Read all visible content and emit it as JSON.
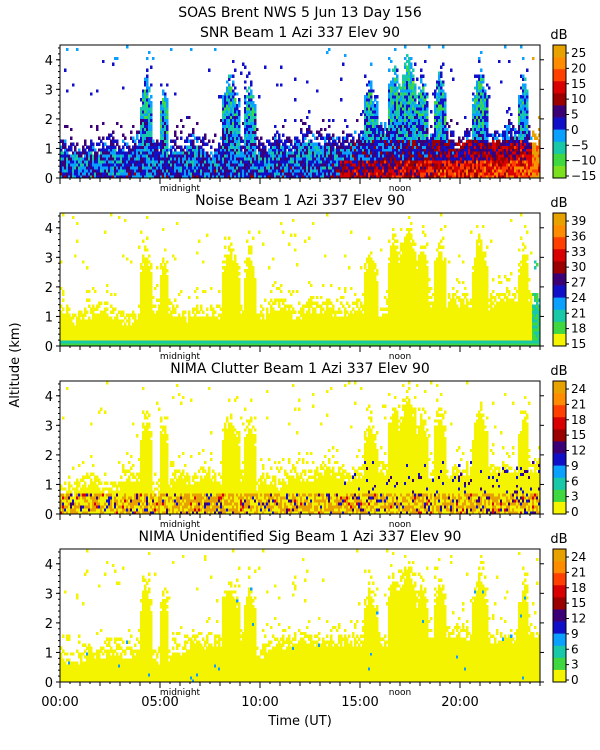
{
  "header": {
    "title": "SOAS Brent NWS    5 Jun 13 Day 156"
  },
  "chart_data": {
    "type": "heatmap",
    "ylabel": "Altitude (km)",
    "xlabel": "Time (UT)",
    "xlim": [
      0,
      24
    ],
    "ylim": [
      0,
      4.5
    ],
    "x_tick_labels": [
      "00:00",
      "05:00",
      "10:00",
      "15:00",
      "20:00"
    ],
    "x_tick_hours": [
      0,
      5,
      10,
      15,
      20
    ],
    "y_ticks": [
      0,
      1,
      2,
      3,
      4
    ],
    "time_markers": [
      {
        "label": "midnight",
        "hour": 6
      },
      {
        "label": "noon",
        "hour": 17
      }
    ],
    "panels": [
      {
        "title": "SNR Beam 1 Azi 337 Elev 90",
        "unit": "dB",
        "colorbar_ticks": [
          "25",
          "20",
          "15",
          "10",
          "5",
          "0",
          "−5",
          "−10",
          "−15"
        ],
        "colors": [
          "#e8a200",
          "#ff8c00",
          "#ff4000",
          "#d80000",
          "#9b0000",
          "#3c0076",
          "#1010c8",
          "#0aa0ff",
          "#18c8a8",
          "#40d840",
          "#7be020"
        ]
      },
      {
        "title": "Noise Beam 1 Azi 337 Elev 90",
        "unit": "dB",
        "colorbar_ticks": [
          "39",
          "36",
          "33",
          "30",
          "27",
          "24",
          "21",
          "18",
          "15"
        ],
        "colors": [
          "#e8a200",
          "#ff8c00",
          "#ff4000",
          "#d80000",
          "#9b0000",
          "#3c0076",
          "#1010c8",
          "#0aa0ff",
          "#18c8a8",
          "#40d840",
          "#f4f400"
        ]
      },
      {
        "title": "NIMA Clutter Beam 1 Azi 337 Elev 90",
        "unit": "dB",
        "colorbar_ticks": [
          "24",
          "21",
          "18",
          "15",
          "12",
          "9",
          "6",
          "3",
          "0"
        ],
        "colors": [
          "#e8a200",
          "#ff8c00",
          "#ff4000",
          "#d80000",
          "#9b0000",
          "#3c0076",
          "#1010c8",
          "#0aa0ff",
          "#18c8a8",
          "#40d840",
          "#f4f400"
        ]
      },
      {
        "title": "NIMA Unidentified Sig Beam 1 Azi 337 Elev 90",
        "unit": "dB",
        "colorbar_ticks": [
          "24",
          "21",
          "18",
          "15",
          "12",
          "9",
          "6",
          "3",
          "0"
        ],
        "colors": [
          "#e8a200",
          "#ff8c00",
          "#ff4000",
          "#d80000",
          "#9b0000",
          "#3c0076",
          "#1010c8",
          "#0aa0ff",
          "#18c8a8",
          "#40d840",
          "#f4f400"
        ]
      }
    ]
  }
}
